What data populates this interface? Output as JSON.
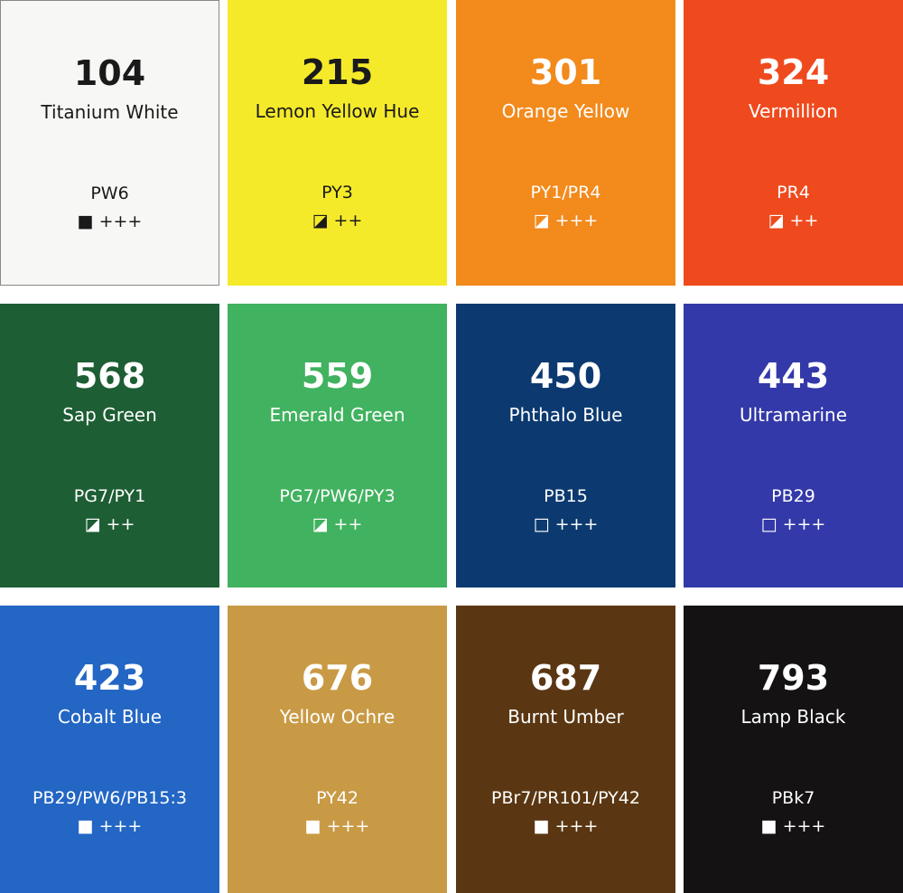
{
  "cells": [
    {
      "number": "104",
      "name": "Titanium White",
      "pigment": "PW6",
      "icon": "■",
      "rating": "+++",
      "color": "#f7f7f5",
      "text_color": "#1a1a1a"
    },
    {
      "number": "215",
      "name": "Lemon Yellow Hue",
      "pigment": "PY3",
      "icon": "◪",
      "rating": "++",
      "color": "#f5ea2a",
      "text_color": "#1a1a1a"
    },
    {
      "number": "301",
      "name": "Orange Yellow",
      "pigment": "PY1/PR4",
      "icon": "◪",
      "rating": "+++",
      "color": "#f28a1c",
      "text_color": "#ffffff"
    },
    {
      "number": "324",
      "name": "Vermillion",
      "pigment": "PR4",
      "icon": "◪",
      "rating": "++",
      "color": "#ef4a1e",
      "text_color": "#ffffff"
    },
    {
      "number": "568",
      "name": "Sap Green",
      "pigment": "PG7/PY1",
      "icon": "◪",
      "rating": "++",
      "color": "#1d5e34",
      "text_color": "#ffffff"
    },
    {
      "number": "559",
      "name": "Emerald Green",
      "pigment": "PG7/PW6/PY3",
      "icon": "◪",
      "rating": "++",
      "color": "#41b25f",
      "text_color": "#ffffff"
    },
    {
      "number": "450",
      "name": "Phthalo Blue",
      "pigment": "PB15",
      "icon": "□",
      "rating": "+++",
      "color": "#0c3a70",
      "text_color": "#ffffff"
    },
    {
      "number": "443",
      "name": "Ultramarine",
      "pigment": "PB29",
      "icon": "□",
      "rating": "+++",
      "color": "#3339a8",
      "text_color": "#ffffff"
    },
    {
      "number": "423",
      "name": "Cobalt Blue",
      "pigment": "PB29/PW6/PB15:3",
      "icon": "■",
      "rating": "+++",
      "color": "#2366c4",
      "text_color": "#ffffff"
    },
    {
      "number": "676",
      "name": "Yellow Ochre",
      "pigment": "PY42",
      "icon": "■",
      "rating": "+++",
      "color": "#c99a45",
      "text_color": "#ffffff"
    },
    {
      "number": "687",
      "name": "Burnt Umber",
      "pigment": "PBr7/PR101/PY42",
      "icon": "■",
      "rating": "+++",
      "color": "#5a3712",
      "text_color": "#ffffff"
    },
    {
      "number": "793",
      "name": "Lamp Black",
      "pigment": "PBk7",
      "icon": "■",
      "rating": "+++",
      "color": "#141212",
      "text_color": "#ffffff"
    }
  ]
}
